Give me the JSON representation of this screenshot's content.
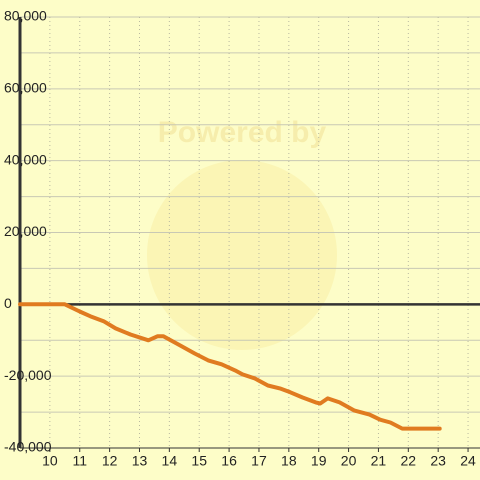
{
  "chart_data": {
    "type": "line",
    "watermark": "Powered by",
    "x": [
      9,
      10.5,
      11.0,
      11.35,
      11.8,
      12.2,
      12.7,
      13.3,
      13.6,
      13.8,
      14.35,
      14.85,
      15.3,
      15.75,
      16.2,
      16.45,
      16.85,
      17.3,
      17.7,
      18.05,
      18.45,
      18.9,
      19.05,
      19.3,
      19.7,
      20.2,
      20.7,
      21.05,
      21.4,
      21.8,
      22.4,
      23.05
    ],
    "values": [
      0,
      0,
      -2000,
      -3300,
      -4700,
      -6700,
      -8400,
      -10000,
      -8900,
      -8900,
      -11400,
      -13700,
      -15600,
      -16700,
      -18400,
      -19500,
      -20600,
      -22600,
      -23400,
      -24500,
      -25900,
      -27300,
      -27600,
      -26200,
      -27300,
      -29600,
      -30700,
      -32100,
      -32900,
      -34600,
      -34600,
      -34600
    ],
    "color": "#e07b20",
    "xlim": [
      9,
      24.4
    ],
    "xticks": [
      10,
      11,
      12,
      13,
      14,
      15,
      16,
      17,
      18,
      19,
      20,
      21,
      22,
      23,
      24
    ],
    "ylim": [
      -40000,
      80000
    ],
    "yticks": [
      {
        "value": -40000,
        "label": "-40,000"
      },
      {
        "value": -20000,
        "label": "-20,000"
      },
      0,
      {
        "value": 20000,
        "label": "20,000"
      },
      {
        "value": 40000,
        "label": "40,000"
      },
      {
        "value": 60000,
        "label": "60,000"
      },
      {
        "value": 80000,
        "label": "80,000"
      }
    ],
    "y_minor_ticks": [
      -30000,
      -10000,
      10000,
      30000,
      50000,
      70000
    ],
    "grid": true
  }
}
